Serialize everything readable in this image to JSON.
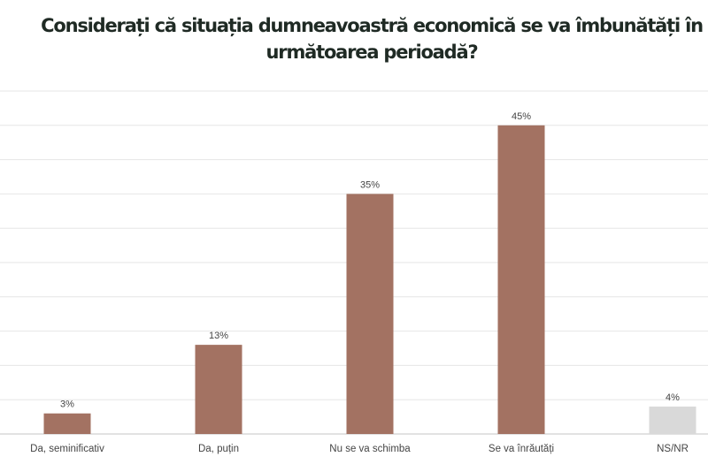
{
  "chart_data": {
    "type": "bar",
    "title": "Considerați că situația dumneavoastră economică se va îmbunătăți în următoarea perioadă?",
    "categories": [
      "Da, seminificativ",
      "Da, puțin",
      "Nu se va schimba",
      "Se va înrăutăți",
      "NS/NR"
    ],
    "values": [
      3,
      13,
      35,
      45,
      4
    ],
    "data_labels": [
      "3%",
      "13%",
      "35%",
      "45%",
      "4%"
    ],
    "colors": [
      "#a37262",
      "#a37262",
      "#a37262",
      "#a37262",
      "#d9d9d9"
    ],
    "xlabel": "",
    "ylabel": "",
    "ylim": [
      0,
      50
    ],
    "grid": true,
    "grid_step": 5,
    "y_tick_labels_visible": false
  }
}
